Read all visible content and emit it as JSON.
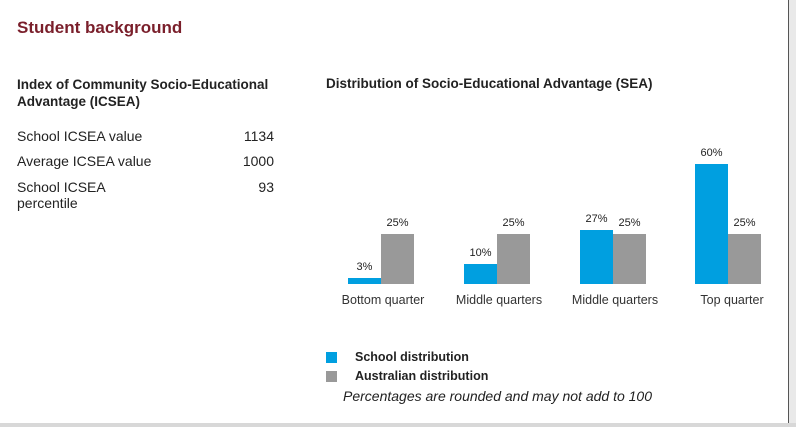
{
  "section_title": "Student background",
  "icsea": {
    "title": "Index of Community Socio-Educational Advantage (ICSEA)",
    "rows": [
      {
        "label": "School ICSEA value",
        "value": "1134"
      },
      {
        "label": "Average ICSEA value",
        "value": "1000"
      },
      {
        "label": "School ICSEA percentile",
        "value": "93"
      }
    ]
  },
  "chart_data": {
    "type": "bar",
    "title": "Distribution of Socio-Educational Advantage (SEA)",
    "categories": [
      "Bottom quarter",
      "Middle quarters",
      "Middle quarters",
      "Top quarter"
    ],
    "series": [
      {
        "name": "School distribution",
        "values": [
          3,
          10,
          27,
          60
        ],
        "labels": [
          "3%",
          "10%",
          "27%",
          "60%"
        ],
        "color": "#009fe0"
      },
      {
        "name": "Australian distribution",
        "values": [
          25,
          25,
          25,
          25
        ],
        "labels": [
          "25%",
          "25%",
          "25%",
          "25%"
        ],
        "color": "#999999"
      }
    ],
    "ylim": [
      0,
      60
    ],
    "grid": false,
    "legend_position": "bottom-left"
  },
  "note": "Percentages are rounded and may not add to 100"
}
